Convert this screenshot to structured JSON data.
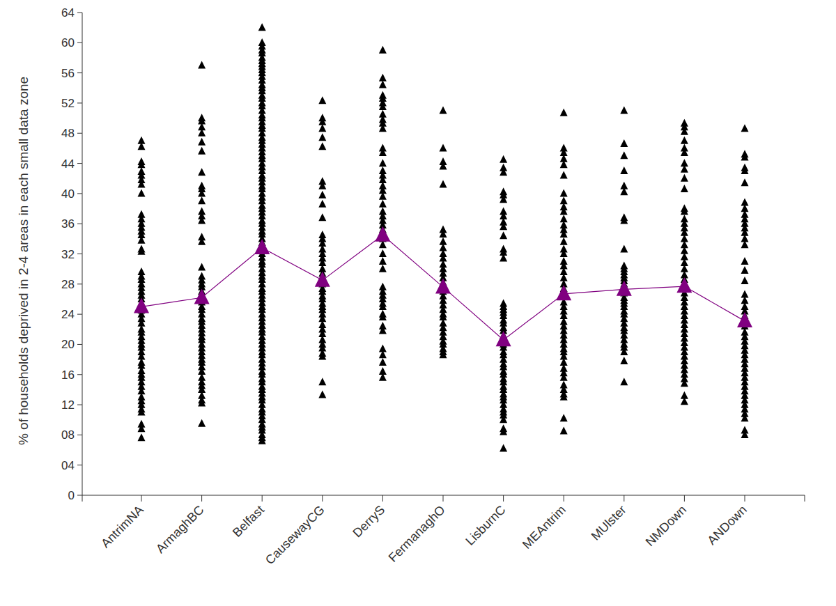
{
  "chart_data": {
    "type": "strip",
    "ylabel": "% of households deprived in 2-4 areas in each small data zone",
    "categories": [
      "AntrimNA",
      "ArmaghBC",
      "Belfast",
      "CausewayCG",
      "DerryS",
      "FermanaghO",
      "LisburnC",
      "MEAntrim",
      "MUlster",
      "NMDown",
      "ANDown"
    ],
    "series": [
      {
        "type": "scatter",
        "marker": "triangle",
        "color": "#000000",
        "values": [
          [
            47,
            46.2,
            44.2,
            43.8,
            42.9,
            42.4,
            41.8,
            41.2,
            40,
            37.2,
            36.6,
            36,
            35.5,
            35,
            34.5,
            33.8,
            32.6,
            32.3,
            29.6,
            29,
            28.6,
            28,
            27.5,
            27,
            26.5,
            26,
            25.5,
            25,
            24.5,
            24,
            23.4,
            22.8,
            22,
            21.6,
            21,
            20.5,
            20,
            19.6,
            19,
            18.4,
            17.6,
            17.2,
            16.5,
            16,
            15.6,
            15,
            14.4,
            13.8,
            13,
            12.5,
            12,
            11.4,
            11,
            9.4,
            8.8,
            7.6
          ],
          [
            57,
            50,
            49.6,
            48.8,
            48,
            46.8,
            45.6,
            42.8,
            41,
            40.6,
            40,
            39,
            37.6,
            37,
            36.4,
            34.2,
            33.6,
            30.2,
            29,
            28.5,
            28,
            27.6,
            27,
            26.4,
            26,
            25.6,
            25,
            24.6,
            24,
            23.4,
            23,
            22.5,
            22,
            21.5,
            21,
            20.6,
            20,
            19.5,
            19,
            18.5,
            18,
            17.6,
            17,
            16.4,
            15.6,
            15,
            14.5,
            14,
            13.2,
            12.6,
            12.2,
            9.5
          ],
          [
            62,
            60,
            59.5,
            59,
            58.6,
            58,
            57.6,
            57.2,
            56.8,
            56.4,
            56,
            55.5,
            55,
            54.4,
            54,
            53.6,
            53,
            52.6,
            52,
            51.6,
            51,
            50.4,
            50,
            49.5,
            49,
            48.6,
            48,
            47.4,
            47,
            46.5,
            46,
            45.5,
            45,
            44.6,
            44,
            43.5,
            43,
            42.4,
            42,
            41.5,
            41,
            40.6,
            40,
            39.5,
            39,
            38.4,
            38,
            37.5,
            37,
            36.4,
            36,
            35.5,
            35,
            34.6,
            34,
            33.5,
            33,
            32.4,
            32,
            31.5,
            31,
            30.6,
            30,
            29.5,
            29,
            28.6,
            28,
            27.4,
            27,
            26.5,
            26,
            25.5,
            25,
            24.6,
            24,
            23.5,
            23,
            22.5,
            22,
            21.6,
            21,
            20.5,
            20,
            19.5,
            19,
            18.6,
            18,
            17.5,
            17,
            16.4,
            16,
            15.4,
            15,
            14.4,
            14,
            13.5,
            13,
            12.6,
            12,
            11.4,
            11,
            10.5,
            10,
            9.4,
            9,
            8.6,
            8,
            7.6,
            7.2
          ],
          [
            52.3,
            50,
            49.5,
            48.6,
            47.4,
            46.2,
            41.6,
            41,
            39.8,
            38.6,
            36.8,
            34.5,
            34,
            33.4,
            32.6,
            32,
            31.4,
            30.8,
            30,
            29.4,
            29,
            28.4,
            28,
            27.4,
            27,
            26.4,
            26,
            25.4,
            25,
            24.6,
            24,
            23.4,
            22.6,
            22,
            21.4,
            20.6,
            20,
            19.5,
            18.8,
            18.4,
            15,
            13.3
          ],
          [
            59,
            55.3,
            54.4,
            53,
            52.6,
            52,
            51.5,
            50.5,
            49.8,
            49.3,
            48.6,
            46,
            45.4,
            44,
            43,
            42.4,
            41.8,
            41,
            40.4,
            39.6,
            38.6,
            37.6,
            37,
            36.4,
            35.8,
            35.2,
            34.6,
            34,
            33.2,
            32,
            31,
            30,
            27.6,
            27,
            26.5,
            26,
            25.4,
            25,
            24,
            23.6,
            22.4,
            21.8,
            19.4,
            18.6,
            17.6,
            16.4,
            15.6
          ],
          [
            51,
            46,
            44.2,
            43.6,
            41.2,
            35.2,
            34.6,
            33.6,
            32.8,
            32,
            31.4,
            30.6,
            30,
            29.4,
            28.8,
            28.2,
            27.6,
            27,
            26.4,
            25.8,
            25.2,
            24.6,
            24,
            23.6,
            22.8,
            22.2,
            21.6,
            21,
            20.4,
            20,
            19.4,
            19,
            18.6
          ],
          [
            44.5,
            43.4,
            42.8,
            40.2,
            39.8,
            39.2,
            37.6,
            37,
            36.2,
            35.6,
            34.4,
            32.6,
            32.2,
            31.4,
            25.4,
            25,
            24.6,
            24.2,
            23.8,
            23.2,
            22.8,
            22.2,
            21.8,
            21.2,
            20.6,
            20,
            19.6,
            19,
            18.6,
            18,
            17.4,
            17,
            16.4,
            16,
            15.4,
            15,
            14.4,
            14,
            13.4,
            13,
            12.6,
            12,
            11.4,
            11,
            10.6,
            10,
            8.8,
            8.4,
            6.2
          ],
          [
            50.7,
            46,
            45.4,
            44.6,
            43.8,
            42.4,
            40,
            39,
            38.2,
            37.6,
            36.6,
            35.8,
            35.2,
            34.6,
            33.6,
            32.6,
            32,
            31,
            30.4,
            29.6,
            28.8,
            28,
            27.4,
            27,
            26.4,
            25.6,
            25,
            24.4,
            23.8,
            23,
            22.4,
            21.8,
            21.2,
            20.6,
            20,
            19.4,
            19,
            18.4,
            17.6,
            16.8,
            16.2,
            15.6,
            14.6,
            14,
            13.4,
            13,
            10.2,
            8.5
          ],
          [
            51,
            46.6,
            45,
            43,
            41,
            40.2,
            36.8,
            36.4,
            32.6,
            30.4,
            30,
            29.6,
            29.2,
            28.8,
            28.4,
            28,
            27.6,
            27.2,
            26.8,
            26.2,
            25.8,
            25.4,
            25,
            24.4,
            24,
            23.4,
            22.8,
            22.2,
            21.8,
            21.2,
            20.6,
            20,
            19.6,
            19,
            17.8,
            15
          ],
          [
            49.3,
            48.8,
            48.2,
            47,
            46,
            45.4,
            44,
            43.2,
            42,
            40.6,
            38,
            37.6,
            36.6,
            36,
            35.4,
            34.8,
            34,
            33.2,
            32.4,
            31.6,
            30.8,
            30,
            29.2,
            28.6,
            28,
            27.4,
            26.8,
            26.2,
            25.6,
            25,
            24.4,
            23.8,
            23.2,
            22.6,
            22,
            21.4,
            20.8,
            20.2,
            19.6,
            19,
            18.4,
            17.8,
            17.2,
            16.6,
            16,
            15.4,
            14.8,
            13.2,
            12.4
          ],
          [
            48.6,
            45.2,
            44.8,
            43.4,
            43,
            41.4,
            38.8,
            38,
            37.2,
            36.6,
            36,
            35.4,
            34.8,
            34,
            33.2,
            31,
            29.8,
            28.4,
            26.6,
            25.8,
            25,
            24.4,
            23.8,
            23.2,
            22.4,
            21.6,
            21,
            20.4,
            19.8,
            19.2,
            18.6,
            18,
            17.4,
            16.8,
            16.2,
            15.6,
            15,
            14.4,
            13.8,
            13.2,
            12.6,
            12,
            11.4,
            10.8,
            10.2,
            8.6,
            8
          ]
        ]
      },
      {
        "type": "line",
        "marker": "triangle",
        "color": "#800080",
        "values": [
          25.0,
          26.2,
          32.8,
          28.5,
          34.5,
          27.6,
          20.6,
          26.7,
          27.3,
          27.7,
          23.1
        ]
      }
    ],
    "ylim": [
      0,
      64
    ],
    "yticks": [
      0,
      {
        "value": 4,
        "label": "04"
      },
      {
        "value": 8,
        "label": "08"
      },
      12,
      16,
      20,
      24,
      28,
      32,
      36,
      40,
      44,
      48,
      52,
      56,
      60,
      64
    ],
    "grid": false
  }
}
